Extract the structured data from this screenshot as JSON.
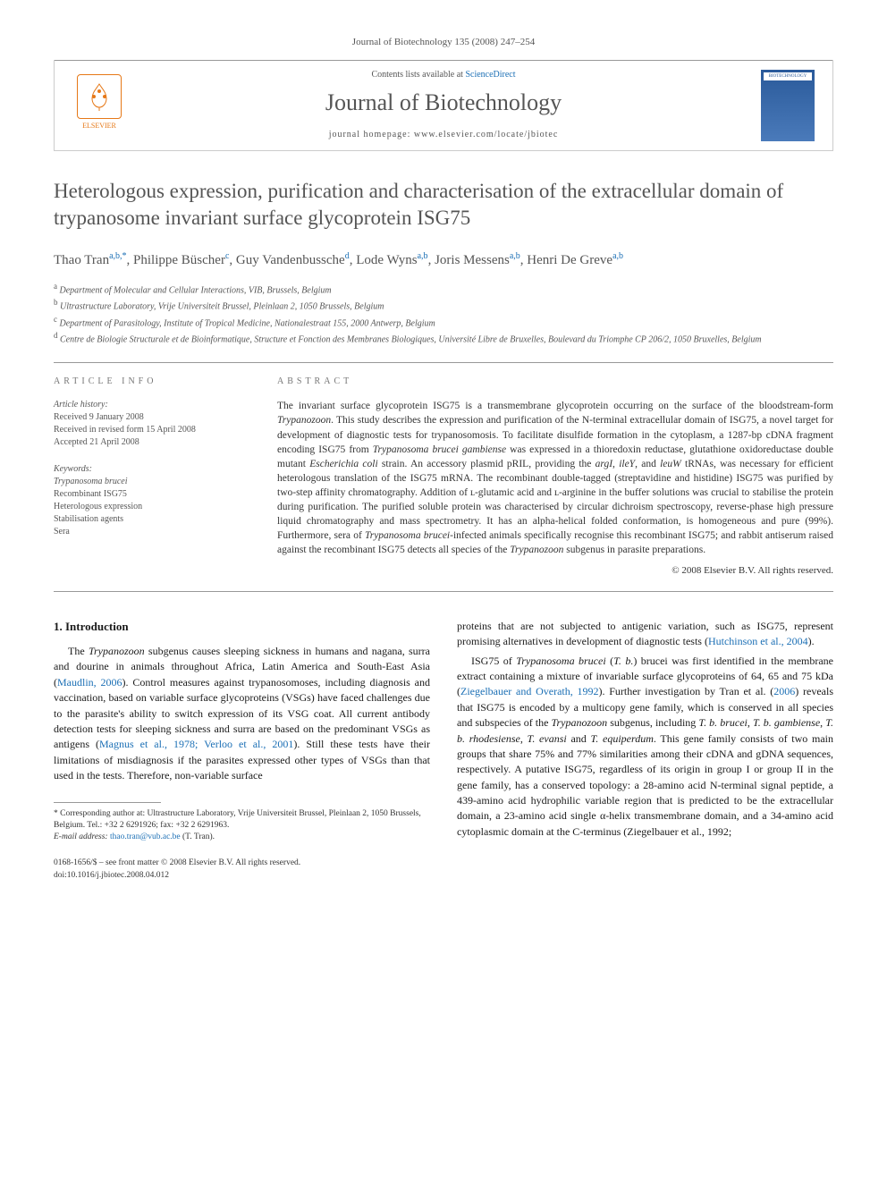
{
  "journal_ref": "Journal of Biotechnology 135 (2008) 247–254",
  "header": {
    "contents_prefix": "Contents lists available at ",
    "contents_link": "ScienceDirect",
    "journal_title": "Journal of Biotechnology",
    "homepage_prefix": "journal homepage: ",
    "homepage_url": "www.elsevier.com/locate/jbiotec",
    "publisher": "ELSEVIER",
    "cover_label": "BIOTECHNOLOGY"
  },
  "title": "Heterologous expression, purification and characterisation of the extracellular domain of trypanosome invariant surface glycoprotein ISG75",
  "authors": [
    {
      "name": "Thao Tran",
      "aff": "a,b,",
      "corr": "*"
    },
    {
      "name": "Philippe Büscher",
      "aff": "c"
    },
    {
      "name": "Guy Vandenbussche",
      "aff": "d"
    },
    {
      "name": "Lode Wyns",
      "aff": "a,b"
    },
    {
      "name": "Joris Messens",
      "aff": "a,b"
    },
    {
      "name": "Henri De Greve",
      "aff": "a,b"
    }
  ],
  "affiliations": [
    {
      "sup": "a",
      "text": "Department of Molecular and Cellular Interactions, VIB, Brussels, Belgium"
    },
    {
      "sup": "b",
      "text": "Ultrastructure Laboratory, Vrije Universiteit Brussel, Pleinlaan 2, 1050 Brussels, Belgium"
    },
    {
      "sup": "c",
      "text": "Department of Parasitology, Institute of Tropical Medicine, Nationalestraat 155, 2000 Antwerp, Belgium"
    },
    {
      "sup": "d",
      "text": "Centre de Biologie Structurale et de Bioinformatique, Structure et Fonction des Membranes Biologiques, Université Libre de Bruxelles, Boulevard du Triomphe CP 206/2, 1050 Bruxelles, Belgium"
    }
  ],
  "article_info": {
    "label": "ARTICLE INFO",
    "history_label": "Article history:",
    "history": [
      "Received 9 January 2008",
      "Received in revised form 15 April 2008",
      "Accepted 21 April 2008"
    ],
    "keywords_label": "Keywords:",
    "keywords": [
      "Trypanosoma brucei",
      "Recombinant ISG75",
      "Heterologous expression",
      "Stabilisation agents",
      "Sera"
    ]
  },
  "abstract": {
    "label": "ABSTRACT",
    "text": "The invariant surface glycoprotein ISG75 is a transmembrane glycoprotein occurring on the surface of the bloodstream-form Trypanozoon. This study describes the expression and purification of the N-terminal extracellular domain of ISG75, a novel target for development of diagnostic tests for trypanosomosis. To facilitate disulfide formation in the cytoplasm, a 1287-bp cDNA fragment encoding ISG75 from Trypanosoma brucei gambiense was expressed in a thioredoxin reductase, glutathione oxidoreductase double mutant Escherichia coli strain. An accessory plasmid pRIL, providing the argI, ileY, and leuW tRNAs, was necessary for efficient heterologous translation of the ISG75 mRNA. The recombinant double-tagged (streptavidine and histidine) ISG75 was purified by two-step affinity chromatography. Addition of ʟ-glutamic acid and ʟ-arginine in the buffer solutions was crucial to stabilise the protein during purification. The purified soluble protein was characterised by circular dichroism spectroscopy, reverse-phase high pressure liquid chromatography and mass spectrometry. It has an alpha-helical folded conformation, is homogeneous and pure (99%). Furthermore, sera of Trypanosoma brucei-infected animals specifically recognise this recombinant ISG75; and rabbit antiserum raised against the recombinant ISG75 detects all species of the Trypanozoon subgenus in parasite preparations.",
    "copyright": "© 2008 Elsevier B.V. All rights reserved."
  },
  "body": {
    "section1": {
      "heading": "1. Introduction",
      "p1": "The Trypanozoon subgenus causes sleeping sickness in humans and nagana, surra and dourine in animals throughout Africa, Latin America and South-East Asia (Maudlin, 2006). Control measures against trypanosomoses, including diagnosis and vaccination, based on variable surface glycoproteins (VSGs) have faced challenges due to the parasite's ability to switch expression of its VSG coat. All current antibody detection tests for sleeping sickness and surra are based on the predominant VSGs as antigens (Magnus et al., 1978; Verloo et al., 2001). Still these tests have their limitations of misdiagnosis if the parasites expressed other types of VSGs than that used in the tests. Therefore, non-variable surface",
      "p2": "proteins that are not subjected to antigenic variation, such as ISG75, represent promising alternatives in development of diagnostic tests (Hutchinson et al., 2004).",
      "p3": "ISG75 of Trypanosoma brucei (T. b.) brucei was first identified in the membrane extract containing a mixture of invariable surface glycoproteins of 64, 65 and 75 kDa (Ziegelbauer and Overath, 1992). Further investigation by Tran et al. (2006) reveals that ISG75 is encoded by a multicopy gene family, which is conserved in all species and subspecies of the Trypanozoon subgenus, including T. b. brucei, T. b. gambiense, T. b. rhodesiense, T. evansi and T. equiperdum. This gene family consists of two main groups that share 75% and 77% similarities among their cDNA and gDNA sequences, respectively. A putative ISG75, regardless of its origin in group I or group II in the gene family, has a conserved topology: a 28-amino acid N-terminal signal peptide, a 439-amino acid hydrophilic variable region that is predicted to be the extracellular domain, a 23-amino acid single α-helix transmembrane domain, and a 34-amino acid cytoplasmic domain at the C-terminus (Ziegelbauer et al., 1992;"
    }
  },
  "footnote": {
    "corr": "* Corresponding author at: Ultrastructure Laboratory, Vrije Universiteit Brussel, Pleinlaan 2, 1050 Brussels, Belgium. Tel.: +32 2 6291926; fax: +32 2 6291963.",
    "email_label": "E-mail address:",
    "email": "thao.tran@vub.ac.be",
    "email_suffix": "(T. Tran)."
  },
  "footer": {
    "line1": "0168-1656/$ – see front matter © 2008 Elsevier B.V. All rights reserved.",
    "line2": "doi:10.1016/j.jbiotec.2008.04.012"
  },
  "colors": {
    "link": "#1b6fb5",
    "text_muted": "#555555",
    "text": "#1a1a1a",
    "elsevier_orange": "#e67817",
    "border": "#999999"
  }
}
